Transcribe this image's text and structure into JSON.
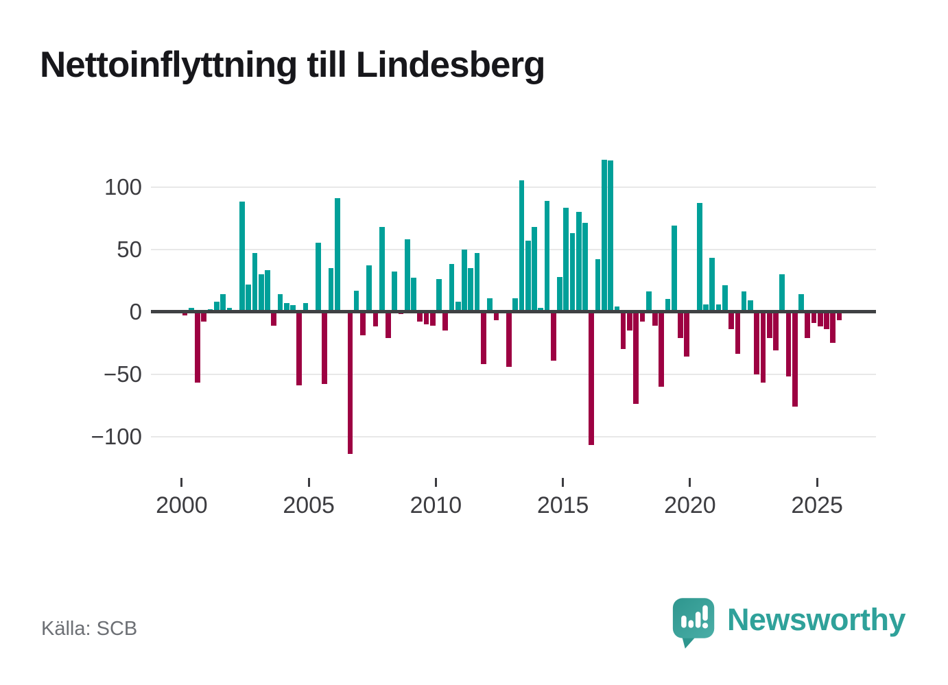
{
  "title": "Nettoinflyttning till Lindesberg",
  "source": "Källa: SCB",
  "branding": {
    "name": "Newsworthy",
    "icon": "bar-chart-speech-bubble-icon"
  },
  "colors": {
    "positive_bar": "#00a099",
    "negative_bar": "#9d0142",
    "zero_axis": "#3f4143",
    "gridline": "#e8e8e8",
    "axis_text": "#3c3c40",
    "title_text": "#17171b",
    "source_text": "#6c6f74",
    "brand_teal": "#2fa19a"
  },
  "chart_data": {
    "type": "bar",
    "title": "Nettoinflyttning till Lindesberg",
    "xlabel": "",
    "ylabel": "",
    "frequency": "quarterly",
    "start_period": "2000 Q1",
    "end_period": "2025 Q4",
    "grid": "horizontal",
    "legend": "none",
    "ylim": [
      -123,
      130
    ],
    "y_ticks": [
      100,
      50,
      0,
      -50,
      -100
    ],
    "y_tick_labels": [
      "100",
      "50",
      "0",
      "−50",
      "−100"
    ],
    "x_tick_years": [
      2000,
      2005,
      2010,
      2015,
      2020,
      2025
    ],
    "x_tick_labels": [
      "2000",
      "2005",
      "2010",
      "2015",
      "2020",
      "2025"
    ],
    "series": [
      {
        "name": "Nettoinflyttning",
        "values": [
          -3,
          3,
          -57,
          -8,
          2,
          8,
          14,
          3,
          0,
          88,
          22,
          47,
          30,
          33,
          -11,
          14,
          7,
          5,
          -59,
          7,
          0,
          55,
          -58,
          35,
          91,
          0,
          -114,
          17,
          -19,
          37,
          -12,
          68,
          -21,
          32,
          -2,
          58,
          27,
          -8,
          -10,
          -11,
          26,
          -15,
          38,
          8,
          50,
          35,
          47,
          -42,
          11,
          -7,
          0,
          -44,
          11,
          105,
          57,
          68,
          3,
          89,
          -39,
          28,
          83,
          63,
          80,
          71,
          -107,
          42,
          122,
          121,
          4,
          -30,
          -15,
          -74,
          -8,
          16,
          -11,
          -60,
          10,
          69,
          -21,
          -36,
          0,
          87,
          6,
          43,
          6,
          21,
          -14,
          -34,
          16,
          9,
          -50,
          -57,
          -21,
          -31,
          30,
          -52,
          -76,
          14,
          -21,
          -9,
          -12,
          -14,
          -25,
          -7
        ]
      }
    ]
  }
}
